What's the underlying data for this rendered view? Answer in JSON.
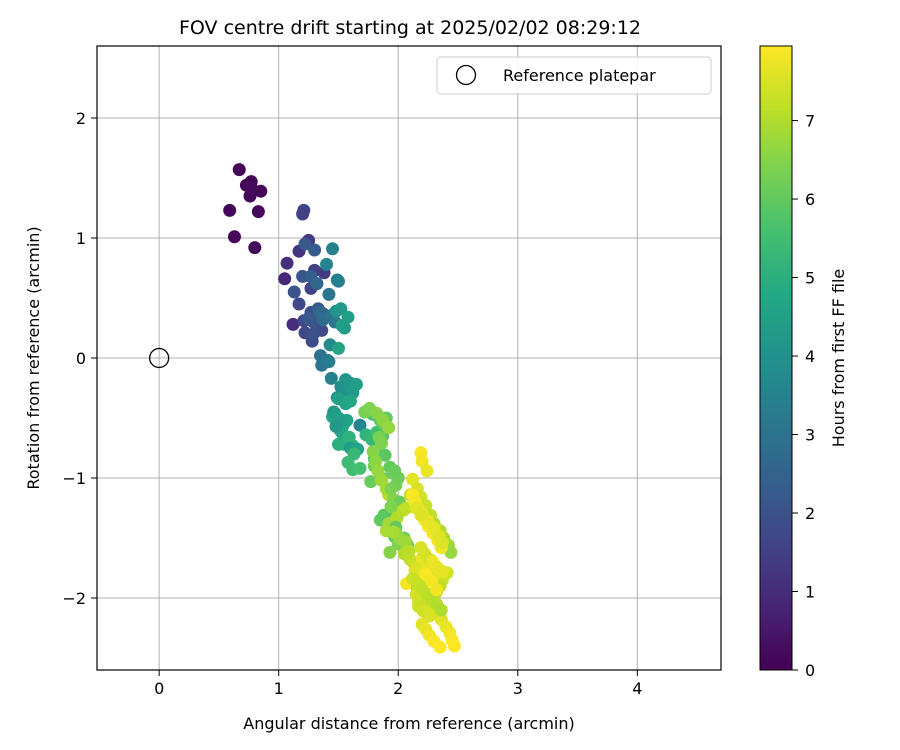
{
  "chart_data": {
    "type": "scatter",
    "title": "FOV centre drift starting at 2025/02/02 08:29:12",
    "xlabel": "Angular distance from reference (arcmin)",
    "ylabel": "Rotation from reference (arcmin)",
    "xlim": [
      -0.52,
      4.7
    ],
    "ylim": [
      -2.6,
      2.6
    ],
    "x_ticks": [
      0,
      1,
      2,
      3,
      4
    ],
    "x_tick_labels": [
      "0",
      "1",
      "2",
      "3",
      "4"
    ],
    "y_ticks": [
      2,
      1,
      0,
      -1,
      -2
    ],
    "y_tick_labels": [
      "2",
      "1",
      "0",
      "−1",
      "−2"
    ],
    "grid": true,
    "legend": {
      "position": "top-right",
      "entries": [
        "Reference platepar"
      ]
    },
    "reference_point": {
      "x": 0,
      "y": 0,
      "label": "Reference platepar"
    },
    "colorbar": {
      "label": "Hours from first FF file",
      "colormap": "viridis",
      "range": [
        0,
        7.95
      ],
      "ticks": [
        0,
        1,
        2,
        3,
        4,
        5,
        6,
        7
      ],
      "tick_labels": [
        "0",
        "1",
        "2",
        "3",
        "4",
        "5",
        "6",
        "7"
      ]
    },
    "series": [
      {
        "x": [
          0.67,
          0.73,
          0.77,
          0.76,
          0.85,
          0.59,
          0.63,
          0.83,
          0.8,
          0.77,
          1.21,
          1.2,
          1.07,
          1.17,
          1.25,
          1.3,
          1.38,
          1.27,
          1.17,
          1.12,
          1.05,
          1.21,
          1.27,
          1.13,
          1.2,
          1.22,
          1.3,
          1.27,
          1.32,
          1.33,
          1.29,
          1.22,
          1.28,
          1.36,
          1.29,
          1.25,
          1.37,
          1.35,
          1.37,
          1.45,
          1.47,
          1.42,
          1.49,
          1.5,
          1.45,
          1.4,
          1.48,
          1.52,
          1.55,
          1.53,
          1.58,
          1.43,
          1.5,
          1.35,
          1.36,
          1.41,
          1.42,
          1.44,
          1.49,
          1.55,
          1.52,
          1.55,
          1.56,
          1.6,
          1.62,
          1.65,
          1.5,
          1.56,
          1.6,
          1.45,
          1.47,
          1.54,
          1.57,
          1.54,
          1.48,
          1.46,
          1.5,
          1.52,
          1.55,
          1.5,
          1.59,
          1.62,
          1.48,
          1.6,
          1.66,
          1.63,
          1.58,
          1.62,
          1.68,
          1.68,
          1.73,
          1.78,
          1.82,
          1.87,
          1.85,
          1.9,
          1.88,
          1.79,
          1.8,
          1.83,
          1.89,
          1.93,
          1.95,
          1.86,
          1.77,
          1.8,
          1.72,
          1.76,
          1.82,
          1.87,
          1.92,
          1.84,
          1.86,
          1.79,
          1.81,
          1.83,
          1.86,
          1.9,
          1.92,
          1.96,
          1.94,
          1.98,
          2.0,
          1.97,
          1.85,
          1.88,
          1.94,
          2.01,
          1.94,
          1.95,
          1.92,
          1.9,
          1.99,
          2.04,
          2.07,
          2.1,
          1.98,
          1.97,
          2.05,
          2.08,
          2.0,
          1.93,
          1.98,
          2.02,
          2.06,
          1.96,
          2.05,
          2.09,
          2.1,
          2.13,
          2.16,
          2.14,
          2.18,
          2.22,
          2.07,
          2.1,
          2.16,
          2.21,
          2.25,
          2.27,
          2.32,
          2.36,
          2.4,
          2.43,
          2.45,
          2.47,
          2.26,
          2.29,
          2.33,
          2.37,
          2.41,
          2.19,
          2.2,
          2.24,
          2.12,
          2.16,
          2.19,
          2.23,
          2.27,
          2.3,
          2.35,
          2.38,
          2.42,
          2.44,
          2.22,
          2.25,
          2.29,
          2.33,
          2.36,
          2.2,
          2.24,
          2.28,
          2.3,
          2.18,
          2.15,
          2.17,
          2.23,
          2.26,
          2.32,
          2.35,
          2.12,
          2.14,
          2.17,
          2.2,
          2.25,
          2.3,
          2.34,
          2.37,
          2.19,
          2.22,
          2.27,
          2.31,
          2.12,
          2.16,
          2.2,
          2.24,
          2.28,
          2.32,
          2.36,
          2.17,
          2.21,
          2.26,
          2.2,
          2.23,
          2.26,
          2.3,
          2.35,
          2.23,
          2.28,
          2.32,
          2.29,
          2.33,
          2.37,
          2.15,
          2.19
        ],
        "y": [
          1.57,
          1.44,
          1.47,
          1.35,
          1.39,
          1.23,
          1.01,
          1.22,
          0.92,
          1.42,
          1.23,
          1.2,
          0.79,
          0.89,
          0.98,
          0.73,
          0.71,
          0.58,
          0.45,
          0.28,
          0.66,
          0.31,
          0.38,
          0.55,
          0.68,
          0.95,
          0.9,
          0.68,
          0.62,
          0.41,
          0.3,
          0.21,
          0.14,
          0.23,
          0.2,
          0.33,
          0.37,
          0.38,
          0.32,
          0.36,
          0.3,
          0.53,
          0.65,
          0.64,
          0.91,
          0.78,
          0.39,
          0.41,
          0.25,
          0.27,
          0.34,
          0.11,
          0.08,
          0.02,
          -0.06,
          -0.02,
          -0.03,
          -0.17,
          -0.33,
          -0.22,
          -0.24,
          -0.27,
          -0.18,
          -0.21,
          -0.29,
          -0.22,
          -0.34,
          -0.38,
          -0.36,
          -0.49,
          -0.46,
          -0.56,
          -0.52,
          -0.64,
          -0.57,
          -0.45,
          -0.5,
          -0.61,
          -0.72,
          -0.72,
          -0.66,
          -0.73,
          -0.57,
          -0.75,
          -0.76,
          -0.8,
          -0.87,
          -0.93,
          -0.92,
          -0.56,
          -0.64,
          -0.68,
          -0.62,
          -0.65,
          -0.52,
          -0.5,
          -0.55,
          -0.47,
          -0.84,
          -0.81,
          -0.81,
          -0.91,
          -0.96,
          -1.0,
          -1.03,
          -0.9,
          -0.45,
          -0.42,
          -0.46,
          -0.52,
          -0.58,
          -0.66,
          -0.71,
          -0.78,
          -0.86,
          -0.94,
          -1.02,
          -1.09,
          -1.14,
          -1.18,
          -1.09,
          -1.06,
          -1.0,
          -0.94,
          -1.35,
          -1.31,
          -1.27,
          -1.2,
          -1.24,
          -1.37,
          -1.38,
          -1.44,
          -1.33,
          -1.27,
          -1.25,
          -1.14,
          -1.41,
          -1.49,
          -1.5,
          -1.56,
          -1.55,
          -1.62,
          -1.46,
          -1.51,
          -1.53,
          -1.45,
          -1.63,
          -1.61,
          -1.68,
          -1.71,
          -1.75,
          -1.77,
          -1.8,
          -1.86,
          -1.88,
          -1.87,
          -1.92,
          -1.97,
          -2.04,
          -2.08,
          -2.13,
          -2.18,
          -2.24,
          -2.29,
          -2.35,
          -2.4,
          -2.0,
          -1.96,
          -1.9,
          -1.85,
          -1.79,
          -0.79,
          -0.86,
          -0.94,
          -1.01,
          -1.09,
          -1.16,
          -1.23,
          -1.31,
          -1.38,
          -1.44,
          -1.5,
          -1.56,
          -1.62,
          -1.35,
          -1.4,
          -1.46,
          -1.52,
          -1.58,
          -1.67,
          -1.72,
          -1.77,
          -1.82,
          -1.92,
          -1.97,
          -2.02,
          -2.06,
          -2.0,
          -1.95,
          -1.9,
          -1.14,
          -1.2,
          -1.26,
          -1.3,
          -1.36,
          -1.42,
          -1.48,
          -1.54,
          -1.58,
          -1.63,
          -1.68,
          -1.73,
          -1.84,
          -1.88,
          -1.92,
          -1.97,
          -2.01,
          -2.05,
          -2.1,
          -2.07,
          -2.11,
          -2.15,
          -2.22,
          -2.26,
          -2.31,
          -2.36,
          -2.41,
          -1.8,
          -1.86,
          -1.93,
          -1.7,
          -1.75,
          -1.78,
          -1.25,
          -1.31
        ],
        "hours": [
          0.05,
          0.06,
          0.08,
          0.1,
          0.12,
          0.14,
          0.16,
          0.18,
          0.2,
          0.22,
          1.6,
          1.55,
          1.1,
          1.2,
          1.3,
          1.5,
          1.4,
          1.6,
          1.7,
          1.0,
          0.9,
          1.8,
          1.9,
          2.0,
          2.1,
          2.2,
          2.3,
          2.4,
          2.6,
          2.2,
          2.0,
          1.7,
          1.8,
          1.8,
          1.9,
          2.2,
          2.5,
          2.7,
          2.8,
          3.0,
          3.2,
          3.1,
          3.3,
          3.4,
          3.5,
          3.6,
          4.0,
          4.2,
          4.3,
          4.4,
          4.5,
          3.8,
          4.6,
          3.0,
          3.1,
          3.2,
          3.3,
          3.5,
          3.8,
          3.6,
          3.9,
          4.0,
          4.1,
          4.2,
          4.3,
          4.4,
          4.5,
          4.6,
          4.7,
          4.8,
          4.9,
          5.0,
          4.6,
          4.8,
          4.4,
          4.3,
          4.5,
          4.7,
          4.9,
          5.0,
          5.1,
          5.2,
          4.2,
          4.4,
          4.6,
          5.3,
          5.4,
          5.5,
          5.6,
          3.6,
          5.1,
          5.3,
          5.5,
          5.8,
          5.9,
          6.0,
          6.1,
          5.6,
          5.7,
          5.8,
          5.9,
          6.0,
          6.2,
          6.0,
          6.1,
          6.2,
          6.3,
          6.4,
          6.5,
          6.6,
          6.7,
          6.3,
          6.4,
          6.5,
          6.6,
          6.7,
          6.8,
          6.9,
          7.0,
          6.5,
          6.4,
          6.3,
          6.2,
          6.1,
          6.0,
          5.9,
          5.8,
          6.2,
          6.4,
          6.6,
          6.8,
          6.9,
          7.0,
          7.1,
          7.2,
          7.3,
          6.0,
          6.1,
          6.2,
          6.3,
          6.4,
          6.5,
          6.6,
          6.7,
          6.8,
          6.9,
          7.0,
          7.1,
          7.2,
          7.3,
          7.4,
          7.5,
          7.6,
          7.7,
          7.8,
          7.9,
          6.8,
          7.0,
          7.2,
          7.4,
          7.5,
          7.6,
          7.7,
          7.8,
          7.9,
          7.95,
          7.0,
          7.1,
          7.2,
          7.3,
          7.4,
          7.9,
          7.8,
          7.7,
          7.6,
          7.5,
          7.4,
          7.3,
          7.2,
          7.1,
          7.0,
          6.9,
          6.8,
          6.7,
          7.95,
          7.9,
          7.85,
          7.8,
          7.75,
          7.7,
          7.65,
          7.6,
          7.55,
          7.5,
          7.45,
          7.4,
          7.35,
          7.3,
          7.25,
          7.2,
          7.9,
          7.85,
          7.8,
          7.75,
          7.7,
          7.65,
          7.6,
          7.55,
          7.5,
          7.45,
          7.4,
          7.35,
          7.3,
          7.25,
          7.2,
          7.15,
          7.1,
          7.05,
          7.0,
          7.3,
          7.4,
          7.5,
          7.6,
          7.7,
          7.8,
          7.9,
          7.95,
          7.9,
          7.85,
          7.8,
          7.75,
          7.7,
          7.65,
          7.6,
          7.55
        ]
      }
    ]
  }
}
